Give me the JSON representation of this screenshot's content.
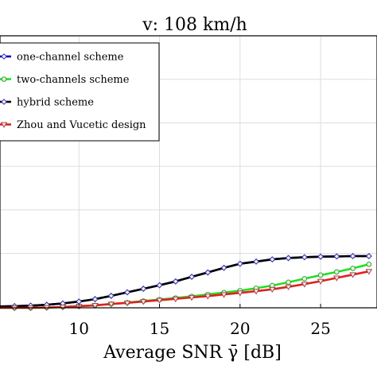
{
  "chart_data": {
    "type": "line",
    "title": "v:  108 km/h",
    "xlabel": "Average SNR γ̄ [dB]",
    "ylabel": "",
    "xlim": [
      5.1,
      28.5
    ],
    "ylim": [
      0,
      1
    ],
    "x_ticks": [
      10,
      15,
      20,
      25
    ],
    "grid": true,
    "legend_position": "top-left",
    "series": [
      {
        "name": "one-channel scheme",
        "color": "#0000cc",
        "marker": "diamond",
        "x": [
          5,
          6,
          7,
          8,
          9,
          10,
          11,
          12,
          13,
          14,
          15,
          16,
          17,
          18,
          19,
          20,
          21,
          22,
          23,
          24,
          25,
          26,
          27,
          28
        ],
        "y": [
          0.005,
          0.006,
          0.008,
          0.011,
          0.016,
          0.023,
          0.032,
          0.044,
          0.057,
          0.07,
          0.083,
          0.097,
          0.114,
          0.13,
          0.147,
          0.162,
          0.17,
          0.178,
          0.183,
          0.186,
          0.188,
          0.189,
          0.19,
          0.19
        ]
      },
      {
        "name": "two-channels scheme",
        "color": "#22dd22",
        "marker": "circle",
        "x": [
          5,
          6,
          7,
          8,
          9,
          10,
          11,
          12,
          13,
          14,
          15,
          16,
          17,
          18,
          19,
          20,
          21,
          22,
          23,
          24,
          25,
          26,
          27,
          28
        ],
        "y": [
          0.0,
          0.0,
          0.0,
          0.001,
          0.003,
          0.006,
          0.009,
          0.014,
          0.019,
          0.025,
          0.03,
          0.036,
          0.042,
          0.049,
          0.056,
          0.063,
          0.072,
          0.082,
          0.094,
          0.107,
          0.12,
          0.132,
          0.145,
          0.16
        ]
      },
      {
        "name": "hybrid scheme",
        "color": "#000000",
        "marker": "diamond",
        "x": [
          5,
          6,
          7,
          8,
          9,
          10,
          11,
          12,
          13,
          14,
          15,
          16,
          17,
          18,
          19,
          20,
          21,
          22,
          23,
          24,
          25,
          26,
          27,
          28
        ],
        "y": [
          0.005,
          0.006,
          0.008,
          0.011,
          0.016,
          0.023,
          0.032,
          0.044,
          0.057,
          0.07,
          0.083,
          0.097,
          0.114,
          0.13,
          0.147,
          0.162,
          0.17,
          0.178,
          0.183,
          0.186,
          0.188,
          0.189,
          0.19,
          0.19
        ]
      },
      {
        "name": "Zhou and Vucetic design",
        "color": "#dd2222",
        "marker": "triangle-down",
        "x": [
          5,
          6,
          7,
          8,
          9,
          10,
          11,
          12,
          13,
          14,
          15,
          16,
          17,
          18,
          19,
          20,
          21,
          22,
          23,
          24,
          25,
          26,
          27,
          28
        ],
        "y": [
          0.0,
          0.0,
          0.0,
          0.001,
          0.003,
          0.006,
          0.009,
          0.014,
          0.018,
          0.023,
          0.028,
          0.033,
          0.038,
          0.043,
          0.049,
          0.055,
          0.061,
          0.068,
          0.077,
          0.087,
          0.098,
          0.11,
          0.122,
          0.134
        ]
      }
    ]
  }
}
